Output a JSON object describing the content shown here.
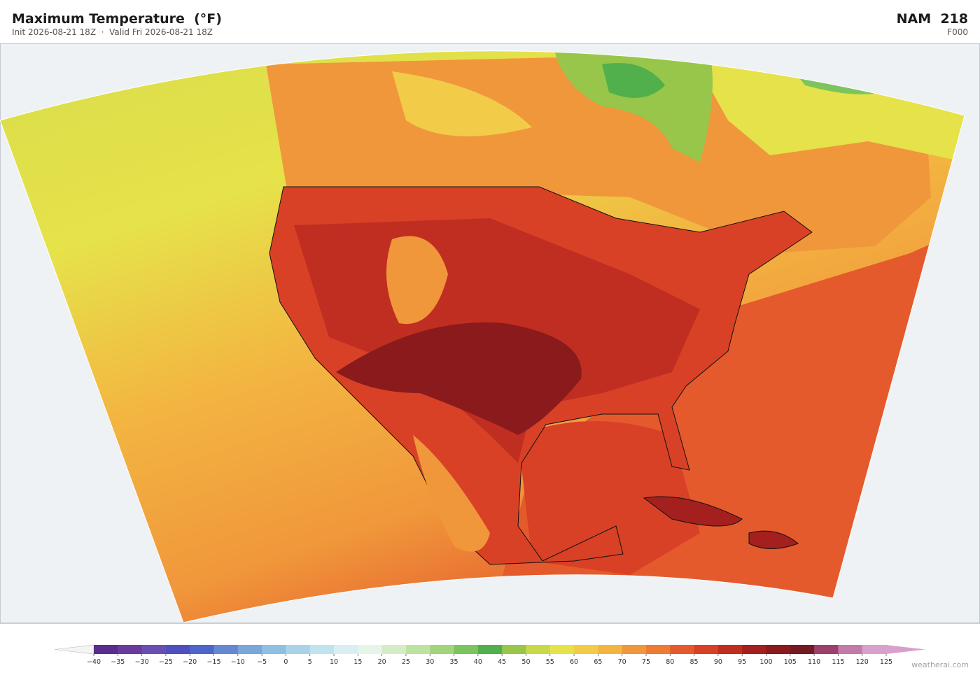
{
  "header": {
    "title": "Maximum Temperature  (°F)",
    "subtitle": "Init 2026-08-21 18Z  ·  Valid Fri 2026-08-21 18Z",
    "model": "NAM  218",
    "forecast_hour": "F000"
  },
  "colorbar": {
    "ticks": [
      {
        "value": -40,
        "label": "−40"
      },
      {
        "value": -35,
        "label": "−35"
      },
      {
        "value": -30,
        "label": "−30"
      },
      {
        "value": -25,
        "label": "−25"
      },
      {
        "value": -20,
        "label": "−20"
      },
      {
        "value": -15,
        "label": "−15"
      },
      {
        "value": -10,
        "label": "−10"
      },
      {
        "value": -5,
        "label": "−5"
      },
      0,
      5,
      10,
      15,
      20,
      25,
      30,
      35,
      40,
      45,
      50,
      55,
      60,
      65,
      70,
      75,
      80,
      85,
      90,
      95,
      100,
      105,
      110,
      115,
      120,
      125
    ],
    "colors": [
      "#5a2d8c",
      "#6a3b9a",
      "#6a4fb0",
      "#4f4fbf",
      "#4d66c8",
      "#6688d0",
      "#7aa6da",
      "#8fbfe2",
      "#a8d3ea",
      "#c1e2ef",
      "#d9eef2",
      "#e7f4ea",
      "#d6ecc6",
      "#bde3a0",
      "#a0d57d",
      "#7cc55e",
      "#52b04c",
      "#97c64a",
      "#c8d948",
      "#e6e24a",
      "#f2cc48",
      "#f3b541",
      "#f0973b",
      "#ee7b34",
      "#e55a2c",
      "#d84126",
      "#c02e22",
      "#a3201e",
      "#8b1a1c",
      "#741b22",
      "#9c416b",
      "#c47aa9",
      "#d9a0cc"
    ],
    "under_color": "#f4f4f4",
    "over_color": "#d9a0cc"
  },
  "footer": {
    "credit": "weatherai.com"
  }
}
